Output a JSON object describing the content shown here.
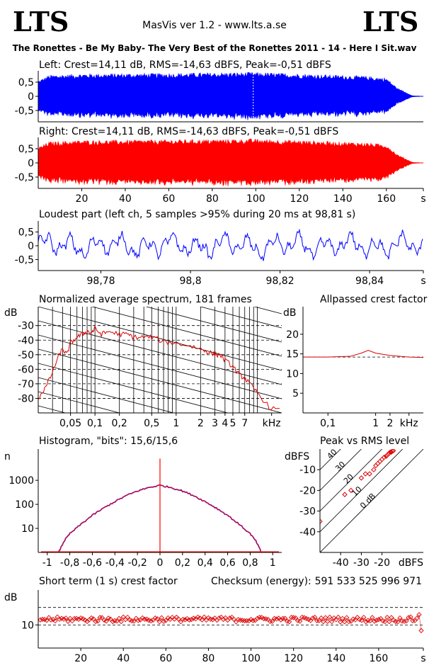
{
  "header": {
    "logo_left": "LTS",
    "logo_right": "LTS",
    "app_title": "MasVis ver 1.2 - www.lts.a.se",
    "file_title": "The Ronettes - Be My Baby- The Very Best of the Ronettes 2011 - 14 - Here I Sit.wav"
  },
  "colors": {
    "left": "#0000ff",
    "right": "#ff0000",
    "spectrum": "#dd0000",
    "axis": "#000000",
    "dashed": "#000000"
  },
  "chart_data": [
    {
      "id": "left-waveform",
      "type": "area",
      "title": "Left: Crest=14,11 dB, RMS=-14,63 dBFS, Peak=-0,51 dBFS",
      "yticks": [
        "0,5",
        "0",
        "-0,5"
      ],
      "ytick_values": [
        0.5,
        0,
        -0.5
      ],
      "ylim": [
        -0.9,
        0.9
      ],
      "xlim": [
        0,
        177
      ],
      "series": [
        {
          "envelope": [
            [
              0,
              0.55
            ],
            [
              5,
              0.75
            ],
            [
              20,
              0.8
            ],
            [
              60,
              0.82
            ],
            [
              98,
              0.85
            ],
            [
              120,
              0.8
            ],
            [
              150,
              0.72
            ],
            [
              160,
              0.65
            ],
            [
              165,
              0.3
            ],
            [
              170,
              0.1
            ],
            [
              172,
              0.02
            ],
            [
              177,
              0.0
            ]
          ]
        }
      ],
      "marker_x": 98.81
    },
    {
      "id": "right-waveform",
      "type": "area",
      "title": "Right: Crest=14,11 dB, RMS=-14,63 dBFS, Peak=-0,51 dBFS",
      "yticks": [
        "0,5",
        "0",
        "-0,5"
      ],
      "ytick_values": [
        0.5,
        0,
        -0.5
      ],
      "ylim": [
        -0.9,
        0.9
      ],
      "xlim": [
        0,
        177
      ],
      "xticks": [
        "20",
        "40",
        "60",
        "80",
        "100",
        "120",
        "140",
        "160",
        "s"
      ],
      "xtick_values": [
        20,
        40,
        60,
        80,
        100,
        120,
        140,
        160,
        177
      ],
      "series": [
        {
          "envelope": [
            [
              0,
              0.55
            ],
            [
              5,
              0.75
            ],
            [
              20,
              0.8
            ],
            [
              60,
              0.82
            ],
            [
              98,
              0.85
            ],
            [
              120,
              0.8
            ],
            [
              150,
              0.72
            ],
            [
              160,
              0.65
            ],
            [
              165,
              0.3
            ],
            [
              170,
              0.1
            ],
            [
              172,
              0.02
            ],
            [
              177,
              0.0
            ]
          ]
        }
      ]
    },
    {
      "id": "loudest-part",
      "type": "line",
      "title": "Loudest part (left  ch, 5 samples >95% during 20 ms at 98,81 s)",
      "yticks": [
        "0,5",
        "0",
        "-0,5"
      ],
      "ytick_values": [
        0.5,
        0,
        -0.5
      ],
      "ylim": [
        -0.9,
        0.9
      ],
      "xlim": [
        98.766,
        98.852
      ],
      "xticks": [
        "98,78",
        "98,8",
        "98,82",
        "98,84",
        "s"
      ],
      "xtick_values": [
        98.78,
        98.8,
        98.82,
        98.84,
        98.852
      ],
      "series": [
        {
          "amplitude": 0.3
        }
      ]
    },
    {
      "id": "average-spectrum",
      "type": "line",
      "title": "Normalized average spectrum, 181 frames",
      "ylabel": "dB",
      "yticks": [
        "-30",
        "-40",
        "-50",
        "-60",
        "-70",
        "-80"
      ],
      "ytick_values": [
        -30,
        -40,
        -50,
        -60,
        -70,
        -80
      ],
      "ylim": [
        -90,
        -17
      ],
      "xlim_log": [
        0.02,
        20
      ],
      "xticks": [
        "0,05",
        "0,1",
        "0,2",
        "0,5",
        "1",
        "2",
        "3",
        "4",
        "5",
        "7",
        "kHz"
      ],
      "xtick_values": [
        0.05,
        0.1,
        0.2,
        0.5,
        1,
        2,
        3,
        4,
        5,
        7,
        15
      ],
      "series": [
        {
          "points": [
            [
              0.02,
              -80
            ],
            [
              0.025,
              -72
            ],
            [
              0.03,
              -62
            ],
            [
              0.035,
              -52
            ],
            [
              0.04,
              -46
            ],
            [
              0.045,
              -50
            ],
            [
              0.05,
              -42
            ],
            [
              0.06,
              -38
            ],
            [
              0.07,
              -36
            ],
            [
              0.08,
              -34
            ],
            [
              0.09,
              -35
            ],
            [
              0.1,
              -32
            ],
            [
              0.12,
              -36
            ],
            [
              0.15,
              -34
            ],
            [
              0.2,
              -36
            ],
            [
              0.25,
              -36
            ],
            [
              0.3,
              -38
            ],
            [
              0.4,
              -38
            ],
            [
              0.5,
              -38
            ],
            [
              0.7,
              -41
            ],
            [
              1.0,
              -42
            ],
            [
              1.5,
              -44
            ],
            [
              2.0,
              -46
            ],
            [
              2.5,
              -48
            ],
            [
              3.0,
              -50
            ],
            [
              3.5,
              -50
            ],
            [
              4.0,
              -54
            ],
            [
              5.0,
              -58
            ],
            [
              6.0,
              -64
            ],
            [
              7.0,
              -66
            ],
            [
              8.0,
              -70
            ],
            [
              10.0,
              -76
            ],
            [
              14.0,
              -86
            ],
            [
              20.0,
              -89
            ]
          ]
        }
      ]
    },
    {
      "id": "allpassed-crest",
      "type": "line",
      "title": "Allpassed crest factor",
      "ylabel": "dB",
      "yticks": [
        "20",
        "15",
        "10",
        "5"
      ],
      "ytick_values": [
        20,
        15,
        10,
        5
      ],
      "ylim": [
        0,
        27
      ],
      "xlim_log": [
        0.03,
        10
      ],
      "xticks": [
        "0,1",
        "1",
        "2",
        "kHz"
      ],
      "xtick_values": [
        0.1,
        1,
        2,
        5
      ],
      "series": [
        {
          "points": [
            [
              0.03,
              14.2
            ],
            [
              0.1,
              14.2
            ],
            [
              0.3,
              14.4
            ],
            [
              0.5,
              15.2
            ],
            [
              0.7,
              15.9
            ],
            [
              1.0,
              15.2
            ],
            [
              2.0,
              14.6
            ],
            [
              5.0,
              14.2
            ],
            [
              10.0,
              14.1
            ]
          ]
        }
      ]
    },
    {
      "id": "histogram",
      "type": "line",
      "title": "Histogram, \"bits\": 15,6/15,6",
      "ylabel": "n",
      "yticks": [
        "1000",
        "100",
        "10"
      ],
      "ytick_values": [
        1000,
        100,
        10
      ],
      "ylim_log": [
        1,
        20000
      ],
      "xlim": [
        -1.08,
        1.08
      ],
      "xticks": [
        "-1",
        "-0,8",
        "-0,6",
        "-0,4",
        "-0,2",
        "0",
        "0,2",
        "0,4",
        "0,6",
        "0,8",
        "1"
      ],
      "xtick_values": [
        -1,
        -0.8,
        -0.6,
        -0.4,
        -0.2,
        0,
        0.2,
        0.4,
        0.6,
        0.8,
        1
      ],
      "peak_at_zero": 8000,
      "series": [
        {
          "points": [
            [
              -0.9,
              1
            ],
            [
              -0.85,
              3
            ],
            [
              -0.8,
              6
            ],
            [
              -0.7,
              15
            ],
            [
              -0.6,
              35
            ],
            [
              -0.5,
              70
            ],
            [
              -0.4,
              130
            ],
            [
              -0.3,
              230
            ],
            [
              -0.2,
              360
            ],
            [
              -0.1,
              500
            ],
            [
              0,
              620
            ],
            [
              0.1,
              500
            ],
            [
              0.2,
              360
            ],
            [
              0.3,
              230
            ],
            [
              0.4,
              130
            ],
            [
              0.5,
              70
            ],
            [
              0.6,
              35
            ],
            [
              0.7,
              15
            ],
            [
              0.8,
              6
            ],
            [
              0.85,
              3
            ],
            [
              0.9,
              1
            ]
          ]
        }
      ]
    },
    {
      "id": "peak-vs-rms",
      "type": "scatter",
      "title": "Peak vs RMS level",
      "ylabel": "dBFS",
      "xlabel": "dBFS",
      "yticks": [
        "-10",
        "-20",
        "-30",
        "-40"
      ],
      "ytick_values": [
        -10,
        -20,
        -30,
        -40
      ],
      "xticks": [
        "-40",
        "-30",
        "-20"
      ],
      "xtick_values": [
        -40,
        -30,
        -20
      ],
      "xlim": [
        -50,
        0
      ],
      "ylim": [
        -50,
        0
      ],
      "diagonal_labels": [
        "40",
        "30",
        "20",
        "10",
        "0 dB"
      ],
      "series": [
        {
          "points": [
            [
              -50,
              -35
            ],
            [
              -38,
              -22
            ],
            [
              -35,
              -20
            ],
            [
              -30,
              -14
            ],
            [
              -28,
              -12
            ],
            [
              -26,
              -12
            ],
            [
              -24,
              -10
            ],
            [
              -23,
              -8
            ],
            [
              -22,
              -7
            ],
            [
              -21,
              -6
            ],
            [
              -20,
              -5
            ],
            [
              -19,
              -4
            ],
            [
              -18,
              -3.5
            ],
            [
              -17.5,
              -3
            ],
            [
              -17,
              -2.5
            ],
            [
              -16.5,
              -2
            ],
            [
              -16,
              -1.5
            ],
            [
              -15.5,
              -1.5
            ],
            [
              -15,
              -1
            ],
            [
              -14.5,
              -0.8
            ]
          ]
        }
      ]
    },
    {
      "id": "short-term-crest",
      "type": "scatter",
      "title": "Short term (1 s) crest factor",
      "checksum_label": "Checksum (energy):",
      "checksum_value": "591 533 525 996 971",
      "ylabel": "dB",
      "yticks": [
        "10"
      ],
      "ytick_values": [
        10
      ],
      "ylim_log": [
        4,
        40
      ],
      "xlim": [
        0,
        181
      ],
      "xticks": [
        "20",
        "40",
        "60",
        "80",
        "100",
        "120",
        "140",
        "160",
        "s"
      ],
      "xtick_values": [
        20,
        40,
        60,
        80,
        100,
        120,
        140,
        160,
        181
      ],
      "dashed_levels": [
        10,
        20
      ],
      "series": [
        {
          "mean": 12.5,
          "spread": 1.2,
          "count": 180
        }
      ]
    }
  ]
}
